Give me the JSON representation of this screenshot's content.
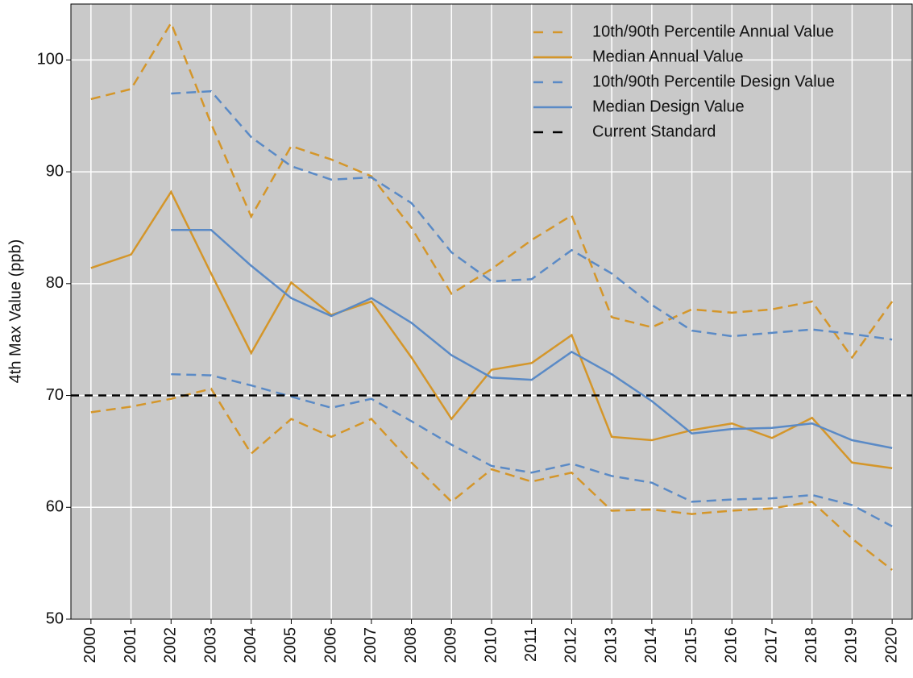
{
  "chart_data": {
    "type": "line",
    "y_label": "4th Max Value (ppb)",
    "categories": [
      "2000",
      "2001",
      "2002",
      "2003",
      "2004",
      "2005",
      "2006",
      "2007",
      "2008",
      "2009",
      "2010",
      "2011",
      "2012",
      "2013",
      "2014",
      "2015",
      "2016",
      "2017",
      "2018",
      "2019",
      "2020"
    ],
    "ylim": [
      50,
      105
    ],
    "yticks": [
      50,
      60,
      70,
      80,
      90,
      100
    ],
    "grid": true,
    "legend": "upper right",
    "series": [
      {
        "name": "10th/90th Percentile Annual Value",
        "color": "#d4962a",
        "dashed": true,
        "lines": [
          [
            96.5,
            97.4,
            103.3,
            94.3,
            86.0,
            92.3,
            91.1,
            89.6,
            85.0,
            79.1,
            81.3,
            83.9,
            86.1,
            77.0,
            76.1,
            77.7,
            77.4,
            77.7,
            78.4,
            73.4,
            78.4
          ],
          [
            68.5,
            69.0,
            69.7,
            70.6,
            64.8,
            67.9,
            66.3,
            67.9,
            64.0,
            60.5,
            63.4,
            62.3,
            63.1,
            59.7,
            59.8,
            59.4,
            59.7,
            59.9,
            60.5,
            57.2,
            54.4
          ]
        ]
      },
      {
        "name": "Median Annual Value",
        "color": "#d4962a",
        "dashed": false,
        "lines": [
          [
            81.4,
            82.6,
            88.2,
            80.9,
            73.8,
            80.1,
            77.2,
            78.4,
            73.4,
            67.9,
            72.3,
            72.9,
            75.4,
            66.3,
            66.0,
            66.9,
            67.5,
            66.2,
            68.0,
            64.0,
            63.5
          ]
        ]
      },
      {
        "name": "10th/90th Percentile Design Value",
        "color": "#5a8ac6",
        "dashed": true,
        "lines": [
          [
            null,
            null,
            97.0,
            97.2,
            93.1,
            90.5,
            89.3,
            89.5,
            87.2,
            82.8,
            80.2,
            80.4,
            83.0,
            80.9,
            78.1,
            75.8,
            75.3,
            75.6,
            75.9,
            75.5,
            75.0
          ],
          [
            null,
            null,
            71.9,
            71.8,
            70.9,
            69.9,
            68.9,
            69.7,
            67.7,
            65.6,
            63.7,
            63.1,
            63.9,
            62.8,
            62.2,
            60.5,
            60.7,
            60.8,
            61.1,
            60.2,
            58.3
          ]
        ]
      },
      {
        "name": "Median Design Value",
        "color": "#5a8ac6",
        "dashed": false,
        "lines": [
          [
            null,
            null,
            84.8,
            84.8,
            81.6,
            78.7,
            77.1,
            78.7,
            76.5,
            73.6,
            71.6,
            71.4,
            73.9,
            71.9,
            69.5,
            66.6,
            67.0,
            67.1,
            67.5,
            66.0,
            65.3
          ]
        ]
      }
    ],
    "reference_line": {
      "name": "Current Standard",
      "color": "#000000",
      "value": 70
    }
  }
}
